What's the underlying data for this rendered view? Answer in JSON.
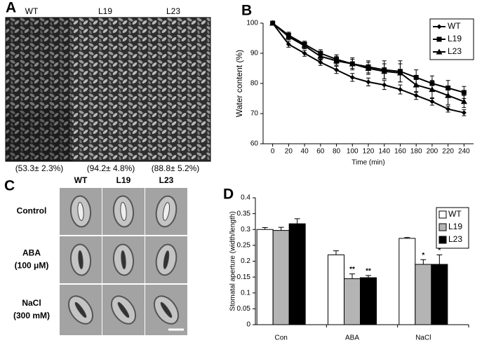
{
  "panel_labels": [
    "A",
    "B",
    "C",
    "D"
  ],
  "panel_a": {
    "columns": [
      "WT",
      "L19",
      "L23"
    ],
    "captions": [
      "(53.3± 2.3%)",
      "(94.2± 4.8%)",
      "(88.8± 5.2%)"
    ]
  },
  "panel_c": {
    "columns": [
      "WT",
      "L19",
      "L23"
    ],
    "rows": [
      [
        "Control"
      ],
      [
        "ABA",
        "(100 μM)"
      ],
      [
        "NaCl",
        "(300 mM)"
      ]
    ]
  },
  "chart_data": [
    {
      "type": "line",
      "xlabel": "Time (min)",
      "ylabel": "Water content (%)",
      "x": [
        0,
        20,
        40,
        60,
        80,
        100,
        120,
        140,
        160,
        180,
        200,
        220,
        240
      ],
      "xlim": [
        -12,
        252
      ],
      "xticks": [
        0,
        20,
        40,
        60,
        80,
        100,
        120,
        140,
        160,
        180,
        200,
        220,
        240
      ],
      "ylim": [
        60,
        100
      ],
      "yticks": [
        60,
        70,
        80,
        90,
        100
      ],
      "grid": false,
      "legend": "top-right",
      "series": [
        {
          "name": "WT",
          "color": "#000000",
          "marker": "diamond",
          "values": [
            100,
            93,
            90,
            87,
            84.5,
            82,
            80.5,
            79.5,
            78,
            76,
            74,
            71.5,
            70.3
          ],
          "errors": [
            0.3,
            1,
            1,
            1,
            1.2,
            1.3,
            1.3,
            1.5,
            1.5,
            1.3,
            1.2,
            1,
            1
          ]
        },
        {
          "name": "L19",
          "color": "#000000",
          "marker": "square",
          "values": [
            100,
            96,
            93,
            90,
            88,
            86.5,
            85.5,
            84.5,
            84,
            82,
            80,
            78.5,
            77
          ],
          "errors": [
            0.3,
            1,
            1,
            1.2,
            1.5,
            2,
            2,
            3,
            3.5,
            2.5,
            2.5,
            2.5,
            2
          ]
        },
        {
          "name": "L23",
          "color": "#000000",
          "marker": "triangle",
          "values": [
            100,
            95.5,
            92.5,
            89,
            87.5,
            86.5,
            85,
            84,
            83.5,
            79.5,
            78,
            76,
            74
          ],
          "errors": [
            0.3,
            1,
            1,
            1.2,
            1.5,
            1.5,
            2,
            2.5,
            3,
            2.5,
            3,
            3,
            2
          ]
        }
      ]
    },
    {
      "type": "bar",
      "ylabel": "Stomatal aperture (width/length)",
      "categories": [
        "Con",
        "ABA",
        "NaCl"
      ],
      "ylim": [
        0,
        0.4
      ],
      "yticks": [
        0,
        0.05,
        0.1,
        0.15,
        0.2,
        0.25,
        0.3,
        0.35,
        0.4
      ],
      "grid": false,
      "legend": "top-right",
      "series": [
        {
          "name": "WT",
          "color": "#ffffff",
          "values": [
            0.3,
            0.22,
            0.272
          ],
          "errors": [
            0.006,
            0.013,
            0.003
          ],
          "significance": [
            null,
            null,
            null
          ]
        },
        {
          "name": "L19",
          "color": "#b4b4b4",
          "values": [
            0.297,
            0.145,
            0.19
          ],
          "errors": [
            0.01,
            0.015,
            0.015
          ],
          "significance": [
            null,
            "**",
            "*"
          ]
        },
        {
          "name": "L23",
          "color": "#000000",
          "values": [
            0.318,
            0.148,
            0.19
          ],
          "errors": [
            0.016,
            0.007,
            0.03
          ],
          "significance": [
            null,
            "**",
            "*"
          ]
        }
      ]
    }
  ]
}
